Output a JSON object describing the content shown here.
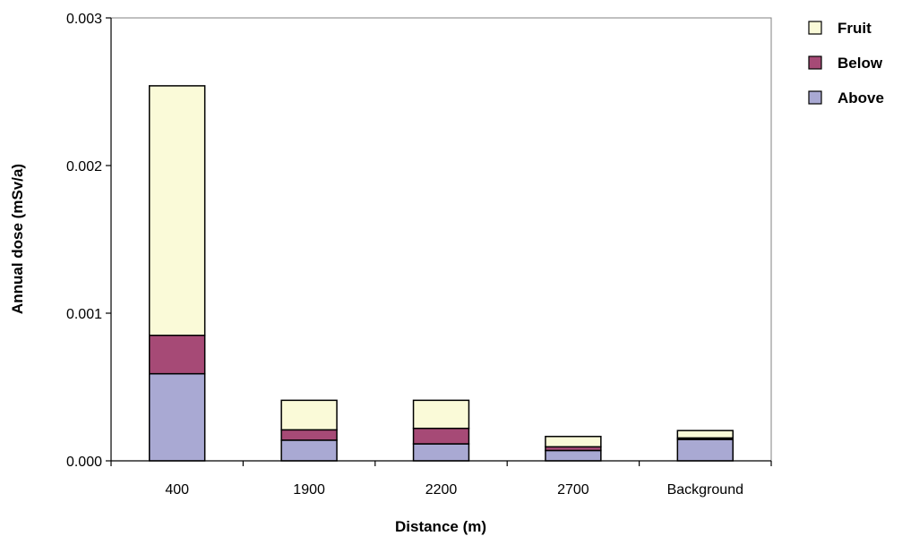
{
  "chart_data": {
    "type": "bar",
    "stacked": true,
    "title": "",
    "xlabel": "Distance (m)",
    "ylabel": "Annual dose (mSv/a)",
    "categories": [
      "400",
      "1900",
      "2200",
      "2700",
      "Background"
    ],
    "ylim": [
      0,
      0.003
    ],
    "yticks": [
      "0.000",
      "0.001",
      "0.002",
      "0.003"
    ],
    "grid": false,
    "legend_position": "top-right",
    "series": [
      {
        "name": "Above",
        "color": "#a9a9d3",
        "values": [
          0.00059,
          0.00014,
          0.000115,
          7e-05,
          0.000145
        ]
      },
      {
        "name": "Below",
        "color": "#a64a76",
        "values": [
          0.00026,
          7e-05,
          0.000105,
          2.5e-05,
          1e-05
        ]
      },
      {
        "name": "Fruit",
        "color": "#fafad8",
        "values": [
          0.00169,
          0.0002,
          0.00019,
          7e-05,
          5e-05
        ]
      }
    ],
    "legend_order": [
      "Fruit",
      "Below",
      "Above"
    ]
  }
}
